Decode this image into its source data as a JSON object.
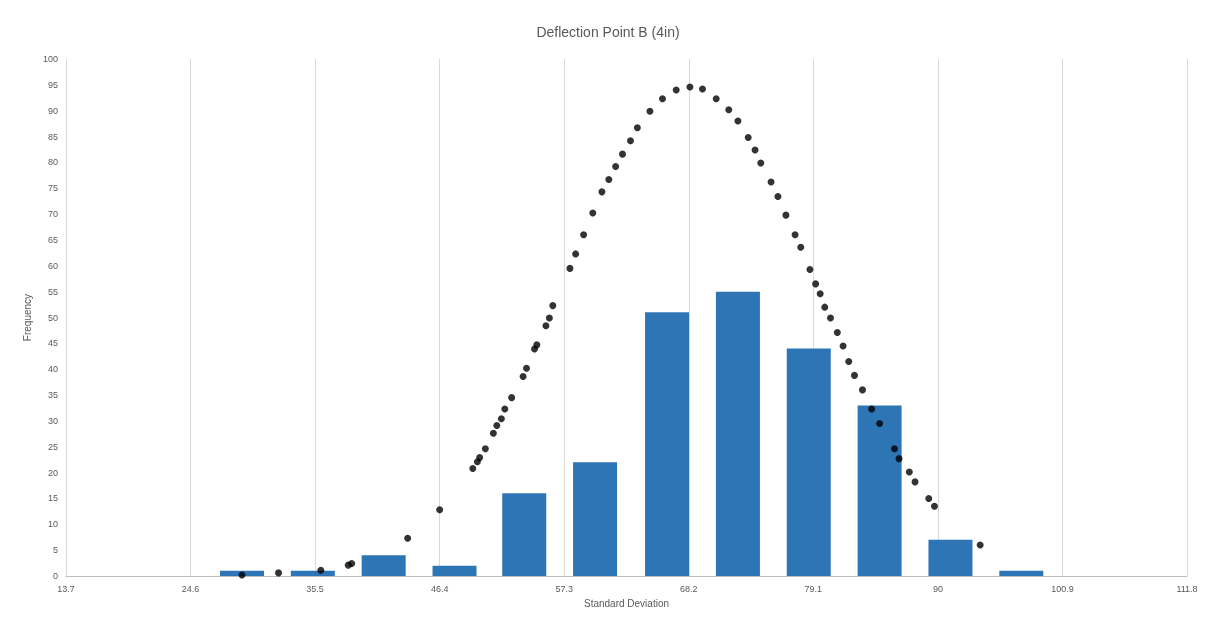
{
  "chart_data": {
    "type": "bar",
    "title": "Deflection Point B (4in)",
    "xlabel": "Standard Deviation",
    "ylabel": "Frequency",
    "xlim": [
      13.7,
      111.8
    ],
    "xticks": [
      13.7,
      24.6,
      35.5,
      46.4,
      57.3,
      68.2,
      79.1,
      90,
      100.9,
      111.8
    ],
    "ylim": [
      0,
      100
    ],
    "yticks": [
      0,
      5,
      10,
      15,
      20,
      25,
      30,
      35,
      40,
      45,
      50,
      55,
      60,
      65,
      70,
      75,
      80,
      85,
      90,
      95,
      100
    ],
    "grid": "x",
    "marker": "circle",
    "series": [
      {
        "color": "#2e75b6",
        "x": [
          29.1,
          35.3,
          41.5,
          47.7,
          53.8,
          60.0,
          66.3,
          72.5,
          78.7,
          84.9,
          91.1,
          97.3
        ],
        "values": [
          1,
          1,
          4,
          2,
          16,
          22,
          51,
          55,
          44,
          33,
          7,
          1
        ]
      },
      {
        "type": "scatter",
        "color": "#000000",
        "x": [
          29.1,
          32.3,
          36.0,
          38.4,
          38.7,
          43.6,
          46.4,
          49.3,
          49.7,
          49.9,
          50.4,
          51.1,
          51.4,
          51.8,
          52.1,
          52.7,
          53.7,
          54.0,
          54.7,
          54.9,
          55.7,
          56.0,
          56.3,
          57.8,
          58.3,
          59.0,
          59.8,
          60.6,
          61.2,
          61.8,
          62.4,
          63.1,
          63.7,
          64.8,
          65.9,
          67.1,
          68.3,
          69.4,
          70.6,
          71.7,
          72.5,
          73.4,
          74.0,
          74.5,
          75.4,
          76.0,
          76.7,
          77.5,
          78.0,
          78.8,
          79.3,
          79.7,
          80.1,
          80.6,
          81.2,
          81.7,
          82.2,
          82.7,
          83.4,
          84.2,
          84.9,
          86.2,
          86.6,
          87.5,
          88.0,
          89.2,
          89.7,
          93.7
        ],
        "values": [
          0.2,
          0.6,
          1.1,
          2.1,
          2.4,
          7.3,
          12.8,
          20.8,
          22.1,
          22.9,
          24.6,
          27.6,
          29.1,
          30.4,
          32.3,
          34.5,
          38.6,
          40.2,
          43.9,
          44.7,
          48.4,
          49.9,
          52.3,
          59.5,
          62.3,
          66.0,
          70.2,
          74.3,
          76.7,
          79.2,
          81.6,
          84.2,
          86.7,
          89.9,
          92.3,
          94.0,
          94.6,
          94.2,
          92.3,
          90.2,
          88.0,
          84.8,
          82.4,
          79.9,
          76.2,
          73.4,
          69.8,
          66.0,
          63.6,
          59.3,
          56.5,
          54.6,
          52.0,
          49.9,
          47.1,
          44.5,
          41.5,
          38.8,
          36.0,
          32.3,
          29.5,
          24.6,
          22.7,
          20.1,
          18.2,
          15.0,
          13.5,
          6.0
        ]
      }
    ]
  }
}
